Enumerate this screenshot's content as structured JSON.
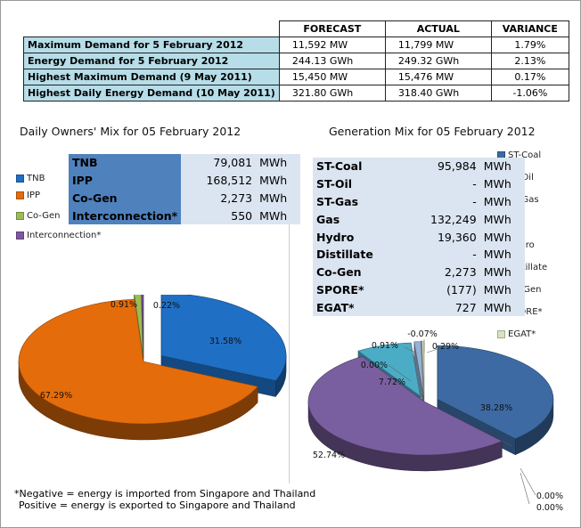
{
  "summary": {
    "headers": [
      "",
      "FORECAST",
      "ACTUAL",
      "VARIANCE"
    ],
    "rows": [
      {
        "label": "Maximum Demand for 5 February 2012",
        "forecast": "11,592  MW",
        "actual": "11,799  MW",
        "variance": "1.79%"
      },
      {
        "label": "Energy Demand for 5 February 2012",
        "forecast": "244.13  GWh",
        "actual": "249.32  GWh",
        "variance": "2.13%"
      },
      {
        "label": "Highest Maximum Demand (9 May 2011)",
        "forecast": "15,450  MW",
        "actual": "15,476  MW",
        "variance": "0.17%"
      },
      {
        "label": "Highest Daily Energy Demand (10 May 2011)",
        "forecast": "321.80  GWh",
        "actual": "318.40  GWh",
        "variance": "-1.06%"
      }
    ]
  },
  "owners_mix": {
    "title": "Daily Owners' Mix for 05 February 2012",
    "legend": [
      {
        "label": "TNB",
        "color": "#1f6fc5"
      },
      {
        "label": "IPP",
        "color": "#e46c0a"
      },
      {
        "label": "Co-Gen",
        "color": "#9bbb59"
      },
      {
        "label": "Interconnection*",
        "color": "#7e57a0"
      }
    ],
    "table": [
      {
        "name": "TNB",
        "value": "79,081",
        "unit": "MWh"
      },
      {
        "name": "IPP",
        "value": "168,512",
        "unit": "MWh"
      },
      {
        "name": "Co-Gen",
        "value": "2,273",
        "unit": "MWh"
      },
      {
        "name": "Interconnection*",
        "value": "550",
        "unit": "MWh"
      }
    ]
  },
  "generation_mix": {
    "title": "Generation Mix for 05 February 2012",
    "legend": [
      {
        "label": "ST-Coal",
        "color": "#3d6aa3"
      },
      {
        "label": "ST-Oil",
        "color": "#c0504d"
      },
      {
        "label": "ST-Gas",
        "color": "#9bbb59"
      },
      {
        "label": "Gas",
        "color": "#7a5fa0"
      },
      {
        "label": "Hydro",
        "color": "#4bacc6"
      },
      {
        "label": "Distillate",
        "color": "#f79646"
      },
      {
        "label": "Co-Gen",
        "color": "#95b3d7"
      },
      {
        "label": "SPORE*",
        "color": "#e6b9b8"
      },
      {
        "label": "EGAT*",
        "color": "#d7e4bd"
      }
    ],
    "table": [
      {
        "name": "ST-Coal",
        "value": "95,984",
        "unit": "MWh"
      },
      {
        "name": "ST-Oil",
        "value": "-",
        "unit": "MWh"
      },
      {
        "name": "ST-Gas",
        "value": "-",
        "unit": "MWh"
      },
      {
        "name": "Gas",
        "value": "132,249",
        "unit": "MWh"
      },
      {
        "name": "Hydro",
        "value": "19,360",
        "unit": "MWh"
      },
      {
        "name": "Distillate",
        "value": "-",
        "unit": "MWh"
      },
      {
        "name": "Co-Gen",
        "value": "2,273",
        "unit": "MWh"
      },
      {
        "name": "SPORE*",
        "value": "(177)",
        "unit": "MWh"
      },
      {
        "name": "EGAT*",
        "value": "727",
        "unit": "MWh"
      }
    ]
  },
  "footnote": {
    "line1": "*Negative = energy is imported from Singapore and Thailand",
    "line2": "Positive = energy is exported to Singapore and Thailand"
  },
  "chart_data": [
    {
      "type": "pie",
      "title": "Daily Owners' Mix for 05 February 2012",
      "categories": [
        "TNB",
        "IPP",
        "Co-Gen",
        "Interconnection*"
      ],
      "values": [
        31.58,
        67.29,
        0.91,
        0.22
      ],
      "labels": [
        "31.58%",
        "67.29%",
        "0.91%",
        "0.22%"
      ],
      "colors": [
        "#1f6fc5",
        "#e46c0a",
        "#9bbb59",
        "#7e57a0"
      ],
      "legend": "left"
    },
    {
      "type": "pie",
      "title": "Generation Mix for 05 February 2012",
      "categories": [
        "ST-Coal",
        "ST-Oil",
        "ST-Gas",
        "Gas",
        "Hydro",
        "Distillate",
        "Co-Gen",
        "SPORE*",
        "EGAT*"
      ],
      "values": [
        38.28,
        0.0,
        0.0,
        52.74,
        7.72,
        0.0,
        0.91,
        -0.07,
        0.29
      ],
      "labels": [
        "38.28%",
        "0.00%",
        "0.00%",
        "52.74%",
        "7.72%",
        "0.00%",
        "0.91%",
        "-0.07%",
        "0.29%"
      ],
      "colors": [
        "#3d6aa3",
        "#c0504d",
        "#9bbb59",
        "#7a5fa0",
        "#4bacc6",
        "#f79646",
        "#95b3d7",
        "#e6b9b8",
        "#d7e4bd"
      ],
      "legend": "right"
    }
  ]
}
